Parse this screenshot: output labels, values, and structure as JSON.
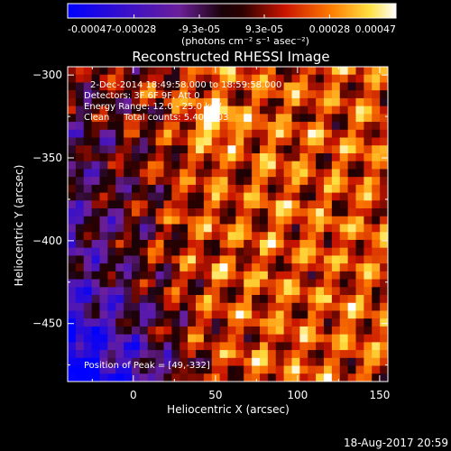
{
  "chart_data": {
    "type": "heatmap",
    "title": "Reconstructed RHESSI Image",
    "xlabel": "Heliocentric X (arcsec)",
    "ylabel": "Heliocentric Y (arcsec)",
    "xlim": [
      -40,
      155
    ],
    "ylim": [
      -485,
      -295
    ],
    "x_ticks": [
      0,
      50,
      100,
      150
    ],
    "y_ticks": [
      -300,
      -350,
      -400,
      -450
    ],
    "colorbar": {
      "min": -0.00047,
      "max": 0.00047,
      "tick_labels": [
        "-0.00047",
        "-0.00028",
        "-9.3e-05",
        "9.3e-05",
        "0.00028",
        "0.00047"
      ],
      "unit_label": "(photons cm⁻² s⁻¹ asec⁻²)",
      "colormap": "blue-purple-black-red-orange-yellow-white"
    },
    "annotations": [
      "2-Dec-2014 18:49:58.000 to 18:59:58.000",
      "Detectors: 3F 6F 9F, Att 0",
      "Energy Range: 12.0 - 25.0 keV",
      "Clean     Total counts: 5.40E+03"
    ],
    "peak_label": "Position of Peak = [49,-332]",
    "peak": {
      "x": 49,
      "y": -332
    },
    "pattern": {
      "grid_cells": [
        40,
        40
      ],
      "description_values": "approximate intensity field: mostly positive (red/orange/yellow) with periodic ripple structure; negative (purple/blue) patches toward left and bottom-left"
    }
  },
  "footer": {
    "timestamp": "18-Aug-2017 20:59"
  }
}
